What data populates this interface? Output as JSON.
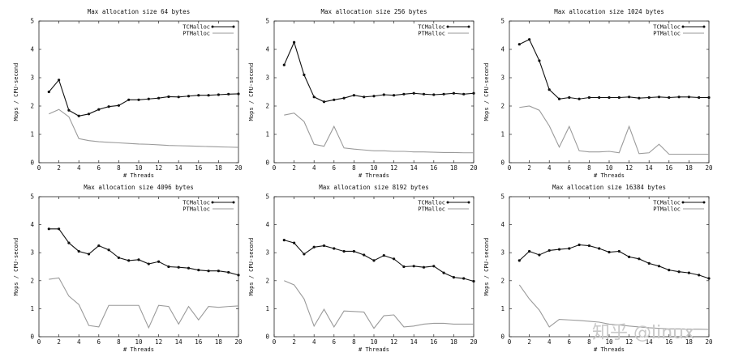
{
  "watermark": "知乎 @linux",
  "chart_data": [
    {
      "type": "line",
      "title": "Max allocation size 64 bytes",
      "xlabel": "# Threads",
      "ylabel": "Mops / CPU-second",
      "xlim": [
        0,
        20
      ],
      "ylim": [
        0,
        5
      ],
      "xticks": [
        "0",
        "2",
        "4",
        "6",
        "8",
        "10",
        "12",
        "14",
        "16",
        "18",
        "20"
      ],
      "yticks": [
        "0",
        "1",
        "2",
        "3",
        "4",
        "5"
      ],
      "legend": "top-right",
      "x": [
        1,
        2,
        3,
        4,
        5,
        6,
        7,
        8,
        9,
        10,
        11,
        12,
        13,
        14,
        15,
        16,
        17,
        18,
        19,
        20
      ],
      "series": [
        {
          "name": "TCMalloc",
          "values": [
            2.5,
            2.92,
            1.85,
            1.65,
            1.72,
            1.88,
            1.98,
            2.02,
            2.22,
            2.22,
            2.25,
            2.28,
            2.33,
            2.32,
            2.35,
            2.38,
            2.38,
            2.4,
            2.42,
            2.43
          ]
        },
        {
          "name": "PTMalloc",
          "values": [
            1.72,
            1.88,
            1.62,
            0.85,
            0.78,
            0.74,
            0.72,
            0.7,
            0.68,
            0.66,
            0.65,
            0.63,
            0.61,
            0.6,
            0.59,
            0.58,
            0.57,
            0.56,
            0.55,
            0.54
          ]
        }
      ]
    },
    {
      "type": "line",
      "title": "Max allocation size 256 bytes",
      "xlabel": "# Threads",
      "ylabel": "Mops / CPU-second",
      "xlim": [
        0,
        20
      ],
      "ylim": [
        0,
        5
      ],
      "xticks": [
        "0",
        "2",
        "4",
        "6",
        "8",
        "10",
        "12",
        "14",
        "16",
        "18",
        "20"
      ],
      "yticks": [
        "0",
        "1",
        "2",
        "3",
        "4",
        "5"
      ],
      "legend": "top-right",
      "x": [
        1,
        2,
        3,
        4,
        5,
        6,
        7,
        8,
        9,
        10,
        11,
        12,
        13,
        14,
        15,
        16,
        17,
        18,
        19,
        20
      ],
      "series": [
        {
          "name": "TCMalloc",
          "values": [
            3.45,
            4.25,
            3.1,
            2.32,
            2.15,
            2.22,
            2.28,
            2.38,
            2.32,
            2.35,
            2.4,
            2.38,
            2.42,
            2.45,
            2.42,
            2.4,
            2.42,
            2.45,
            2.42,
            2.45
          ]
        },
        {
          "name": "PTMalloc",
          "values": [
            1.68,
            1.75,
            1.45,
            0.65,
            0.58,
            1.28,
            0.52,
            0.48,
            0.45,
            0.42,
            0.42,
            0.4,
            0.4,
            0.38,
            0.38,
            0.37,
            0.36,
            0.36,
            0.35,
            0.35
          ]
        }
      ]
    },
    {
      "type": "line",
      "title": "Max allocation size 1024 bytes",
      "xlabel": "# Threads",
      "ylabel": "Mops / CPU-second",
      "xlim": [
        0,
        20
      ],
      "ylim": [
        0,
        5
      ],
      "xticks": [
        "0",
        "2",
        "4",
        "6",
        "8",
        "10",
        "12",
        "14",
        "16",
        "18",
        "20"
      ],
      "yticks": [
        "0",
        "1",
        "2",
        "3",
        "4",
        "5"
      ],
      "legend": "top-right",
      "x": [
        1,
        2,
        3,
        4,
        5,
        6,
        7,
        8,
        9,
        10,
        11,
        12,
        13,
        14,
        15,
        16,
        17,
        18,
        19,
        20
      ],
      "series": [
        {
          "name": "TCMalloc",
          "values": [
            4.18,
            4.35,
            3.6,
            2.58,
            2.25,
            2.3,
            2.25,
            2.3,
            2.3,
            2.3,
            2.3,
            2.32,
            2.28,
            2.3,
            2.32,
            2.3,
            2.32,
            2.32,
            2.3,
            2.3
          ]
        },
        {
          "name": "PTMalloc",
          "values": [
            1.95,
            2.0,
            1.85,
            1.3,
            0.55,
            1.28,
            0.42,
            0.38,
            0.38,
            0.4,
            0.35,
            1.28,
            0.32,
            0.35,
            0.65,
            0.3,
            0.3,
            0.3,
            0.3,
            0.3
          ]
        }
      ]
    },
    {
      "type": "line",
      "title": "Max allocation size 4096 bytes",
      "xlabel": "# Threads",
      "ylabel": "Mops / CPU-second",
      "xlim": [
        0,
        20
      ],
      "ylim": [
        0,
        5
      ],
      "xticks": [
        "0",
        "2",
        "4",
        "6",
        "8",
        "10",
        "12",
        "14",
        "16",
        "18",
        "20"
      ],
      "yticks": [
        "0",
        "1",
        "2",
        "3",
        "4",
        "5"
      ],
      "legend": "top-right",
      "x": [
        1,
        2,
        3,
        4,
        5,
        6,
        7,
        8,
        9,
        10,
        11,
        12,
        13,
        14,
        15,
        16,
        17,
        18,
        19,
        20
      ],
      "series": [
        {
          "name": "TCMalloc",
          "values": [
            3.85,
            3.85,
            3.35,
            3.05,
            2.95,
            3.25,
            3.1,
            2.82,
            2.72,
            2.75,
            2.6,
            2.68,
            2.5,
            2.48,
            2.45,
            2.38,
            2.35,
            2.35,
            2.3,
            2.2
          ]
        },
        {
          "name": "PTMalloc",
          "values": [
            2.05,
            2.1,
            1.45,
            1.15,
            0.4,
            0.35,
            1.12,
            1.12,
            1.12,
            1.12,
            0.32,
            1.12,
            1.08,
            0.45,
            1.08,
            0.6,
            1.08,
            1.05,
            1.08,
            1.1
          ]
        }
      ]
    },
    {
      "type": "line",
      "title": "Max allocation size 8192 bytes",
      "xlabel": "# Threads",
      "ylabel": "Mops / CPU-second",
      "xlim": [
        0,
        20
      ],
      "ylim": [
        0,
        5
      ],
      "xticks": [
        "0",
        "2",
        "4",
        "6",
        "8",
        "10",
        "12",
        "14",
        "16",
        "18",
        "20"
      ],
      "yticks": [
        "0",
        "1",
        "2",
        "3",
        "4",
        "5"
      ],
      "legend": "top-right",
      "x": [
        1,
        2,
        3,
        4,
        5,
        6,
        7,
        8,
        9,
        10,
        11,
        12,
        13,
        14,
        15,
        16,
        17,
        18,
        19,
        20
      ],
      "series": [
        {
          "name": "TCMalloc",
          "values": [
            3.45,
            3.35,
            2.95,
            3.2,
            3.25,
            3.15,
            3.05,
            3.05,
            2.92,
            2.72,
            2.9,
            2.78,
            2.5,
            2.52,
            2.48,
            2.52,
            2.28,
            2.12,
            2.08,
            1.98
          ]
        },
        {
          "name": "PTMalloc",
          "values": [
            2.0,
            1.85,
            1.35,
            0.38,
            0.98,
            0.35,
            0.92,
            0.9,
            0.88,
            0.3,
            0.75,
            0.78,
            0.35,
            0.38,
            0.45,
            0.48,
            0.48,
            0.45,
            0.45,
            0.45
          ]
        }
      ]
    },
    {
      "type": "line",
      "title": "Max allocation size 16384 bytes",
      "xlabel": "# Threads",
      "ylabel": "Mops / CPU-second",
      "xlim": [
        0,
        20
      ],
      "ylim": [
        0,
        5
      ],
      "xticks": [
        "0",
        "2",
        "4",
        "6",
        "8",
        "10",
        "12",
        "14",
        "16",
        "18",
        "20"
      ],
      "yticks": [
        "0",
        "1",
        "2",
        "3",
        "4",
        "5"
      ],
      "legend": "top-right",
      "x": [
        1,
        2,
        3,
        4,
        5,
        6,
        7,
        8,
        9,
        10,
        11,
        12,
        13,
        14,
        15,
        16,
        17,
        18,
        19,
        20
      ],
      "series": [
        {
          "name": "TCMalloc",
          "values": [
            2.72,
            3.05,
            2.92,
            3.08,
            3.12,
            3.15,
            3.28,
            3.25,
            3.15,
            3.02,
            3.05,
            2.85,
            2.78,
            2.62,
            2.52,
            2.38,
            2.32,
            2.28,
            2.2,
            2.08
          ]
        },
        {
          "name": "PTMalloc",
          "values": [
            1.85,
            1.35,
            0.95,
            0.35,
            0.62,
            0.6,
            0.58,
            0.55,
            0.52,
            0.45,
            0.42,
            0.38,
            0.35,
            0.32,
            0.3,
            0.28,
            0.28,
            0.27,
            0.27,
            0.26
          ]
        }
      ]
    }
  ]
}
